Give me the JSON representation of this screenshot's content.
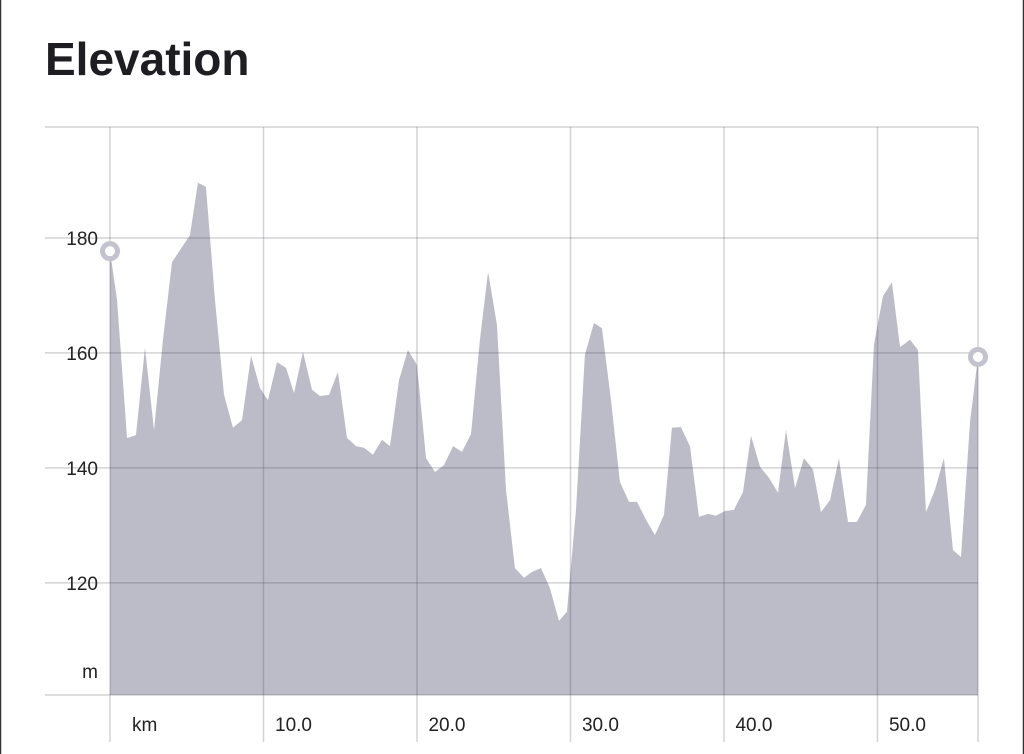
{
  "chart_data": {
    "type": "area",
    "title": "Elevation",
    "xlabel": "km",
    "ylabel": "m",
    "color": "#bcbcc8",
    "grid": true,
    "xlim": [
      0,
      56.55
    ],
    "ylim": [
      100.5,
      199.3
    ],
    "xticks": [
      {
        "value": 10,
        "label": "10.0"
      },
      {
        "value": 20,
        "label": "20.0"
      },
      {
        "value": 30,
        "label": "30.0"
      },
      {
        "value": 40,
        "label": "40.0"
      },
      {
        "value": 50,
        "label": "50.0"
      }
    ],
    "yticks": [
      120,
      140,
      160,
      180
    ],
    "x": [
      0,
      0.46,
      1.11,
      1.69,
      2.28,
      2.87,
      3.45,
      4.04,
      5.21,
      5.73,
      6.25,
      6.84,
      7.43,
      8.01,
      8.6,
      9.19,
      9.77,
      10.29,
      10.88,
      11.47,
      11.99,
      12.57,
      13.16,
      13.68,
      14.27,
      14.85,
      15.44,
      16.03,
      16.55,
      17.13,
      17.72,
      18.24,
      18.83,
      19.41,
      20.0,
      20.59,
      21.17,
      21.76,
      22.35,
      22.93,
      23.52,
      24.1,
      24.63,
      25.21,
      25.8,
      26.38,
      26.97,
      27.49,
      28.08,
      28.66,
      29.25,
      29.77,
      30.36,
      30.94,
      31.53,
      32.05,
      32.64,
      33.22,
      33.81,
      34.33,
      34.92,
      35.5,
      36.09,
      36.61,
      37.2,
      37.79,
      38.37,
      38.96,
      39.48,
      40.07,
      40.65,
      41.24,
      41.76,
      42.35,
      42.93,
      43.52,
      44.04,
      44.63,
      45.21,
      45.8,
      46.32,
      46.91,
      47.49,
      48.08,
      48.66,
      49.25,
      49.77,
      50.36,
      50.94,
      51.47,
      52.12,
      52.64,
      53.16,
      53.75,
      54.33,
      54.92,
      55.44,
      56.03,
      56.55
    ],
    "values": [
      177.7,
      169.2,
      145.2,
      145.7,
      160.9,
      146.6,
      162.3,
      175.8,
      180.5,
      189.6,
      188.9,
      169.2,
      152.7,
      147.0,
      148.3,
      159.5,
      153.9,
      151.8,
      158.4,
      157.4,
      153.0,
      160.2,
      153.6,
      152.5,
      152.7,
      156.7,
      145.2,
      143.8,
      143.5,
      142.3,
      144.9,
      143.8,
      155.3,
      160.5,
      157.9,
      141.7,
      139.3,
      140.5,
      143.8,
      142.8,
      145.9,
      162.3,
      174.1,
      164.9,
      136.2,
      122.6,
      120.9,
      121.9,
      122.6,
      119.1,
      113.4,
      115.0,
      132.7,
      159.7,
      165.2,
      164.3,
      151.8,
      137.6,
      134.1,
      134.1,
      131.0,
      128.3,
      131.8,
      147.0,
      147.1,
      143.7,
      131.5,
      132.0,
      131.7,
      132.5,
      132.7,
      135.8,
      145.6,
      140.2,
      138.3,
      135.7,
      146.6,
      136.5,
      141.7,
      139.7,
      132.3,
      134.4,
      141.7,
      130.6,
      130.6,
      133.6,
      161.4,
      169.9,
      172.3,
      161.0,
      162.3,
      160.5,
      132.3,
      136.2,
      141.7,
      125.7,
      124.5,
      148.0,
      159.3
    ]
  }
}
